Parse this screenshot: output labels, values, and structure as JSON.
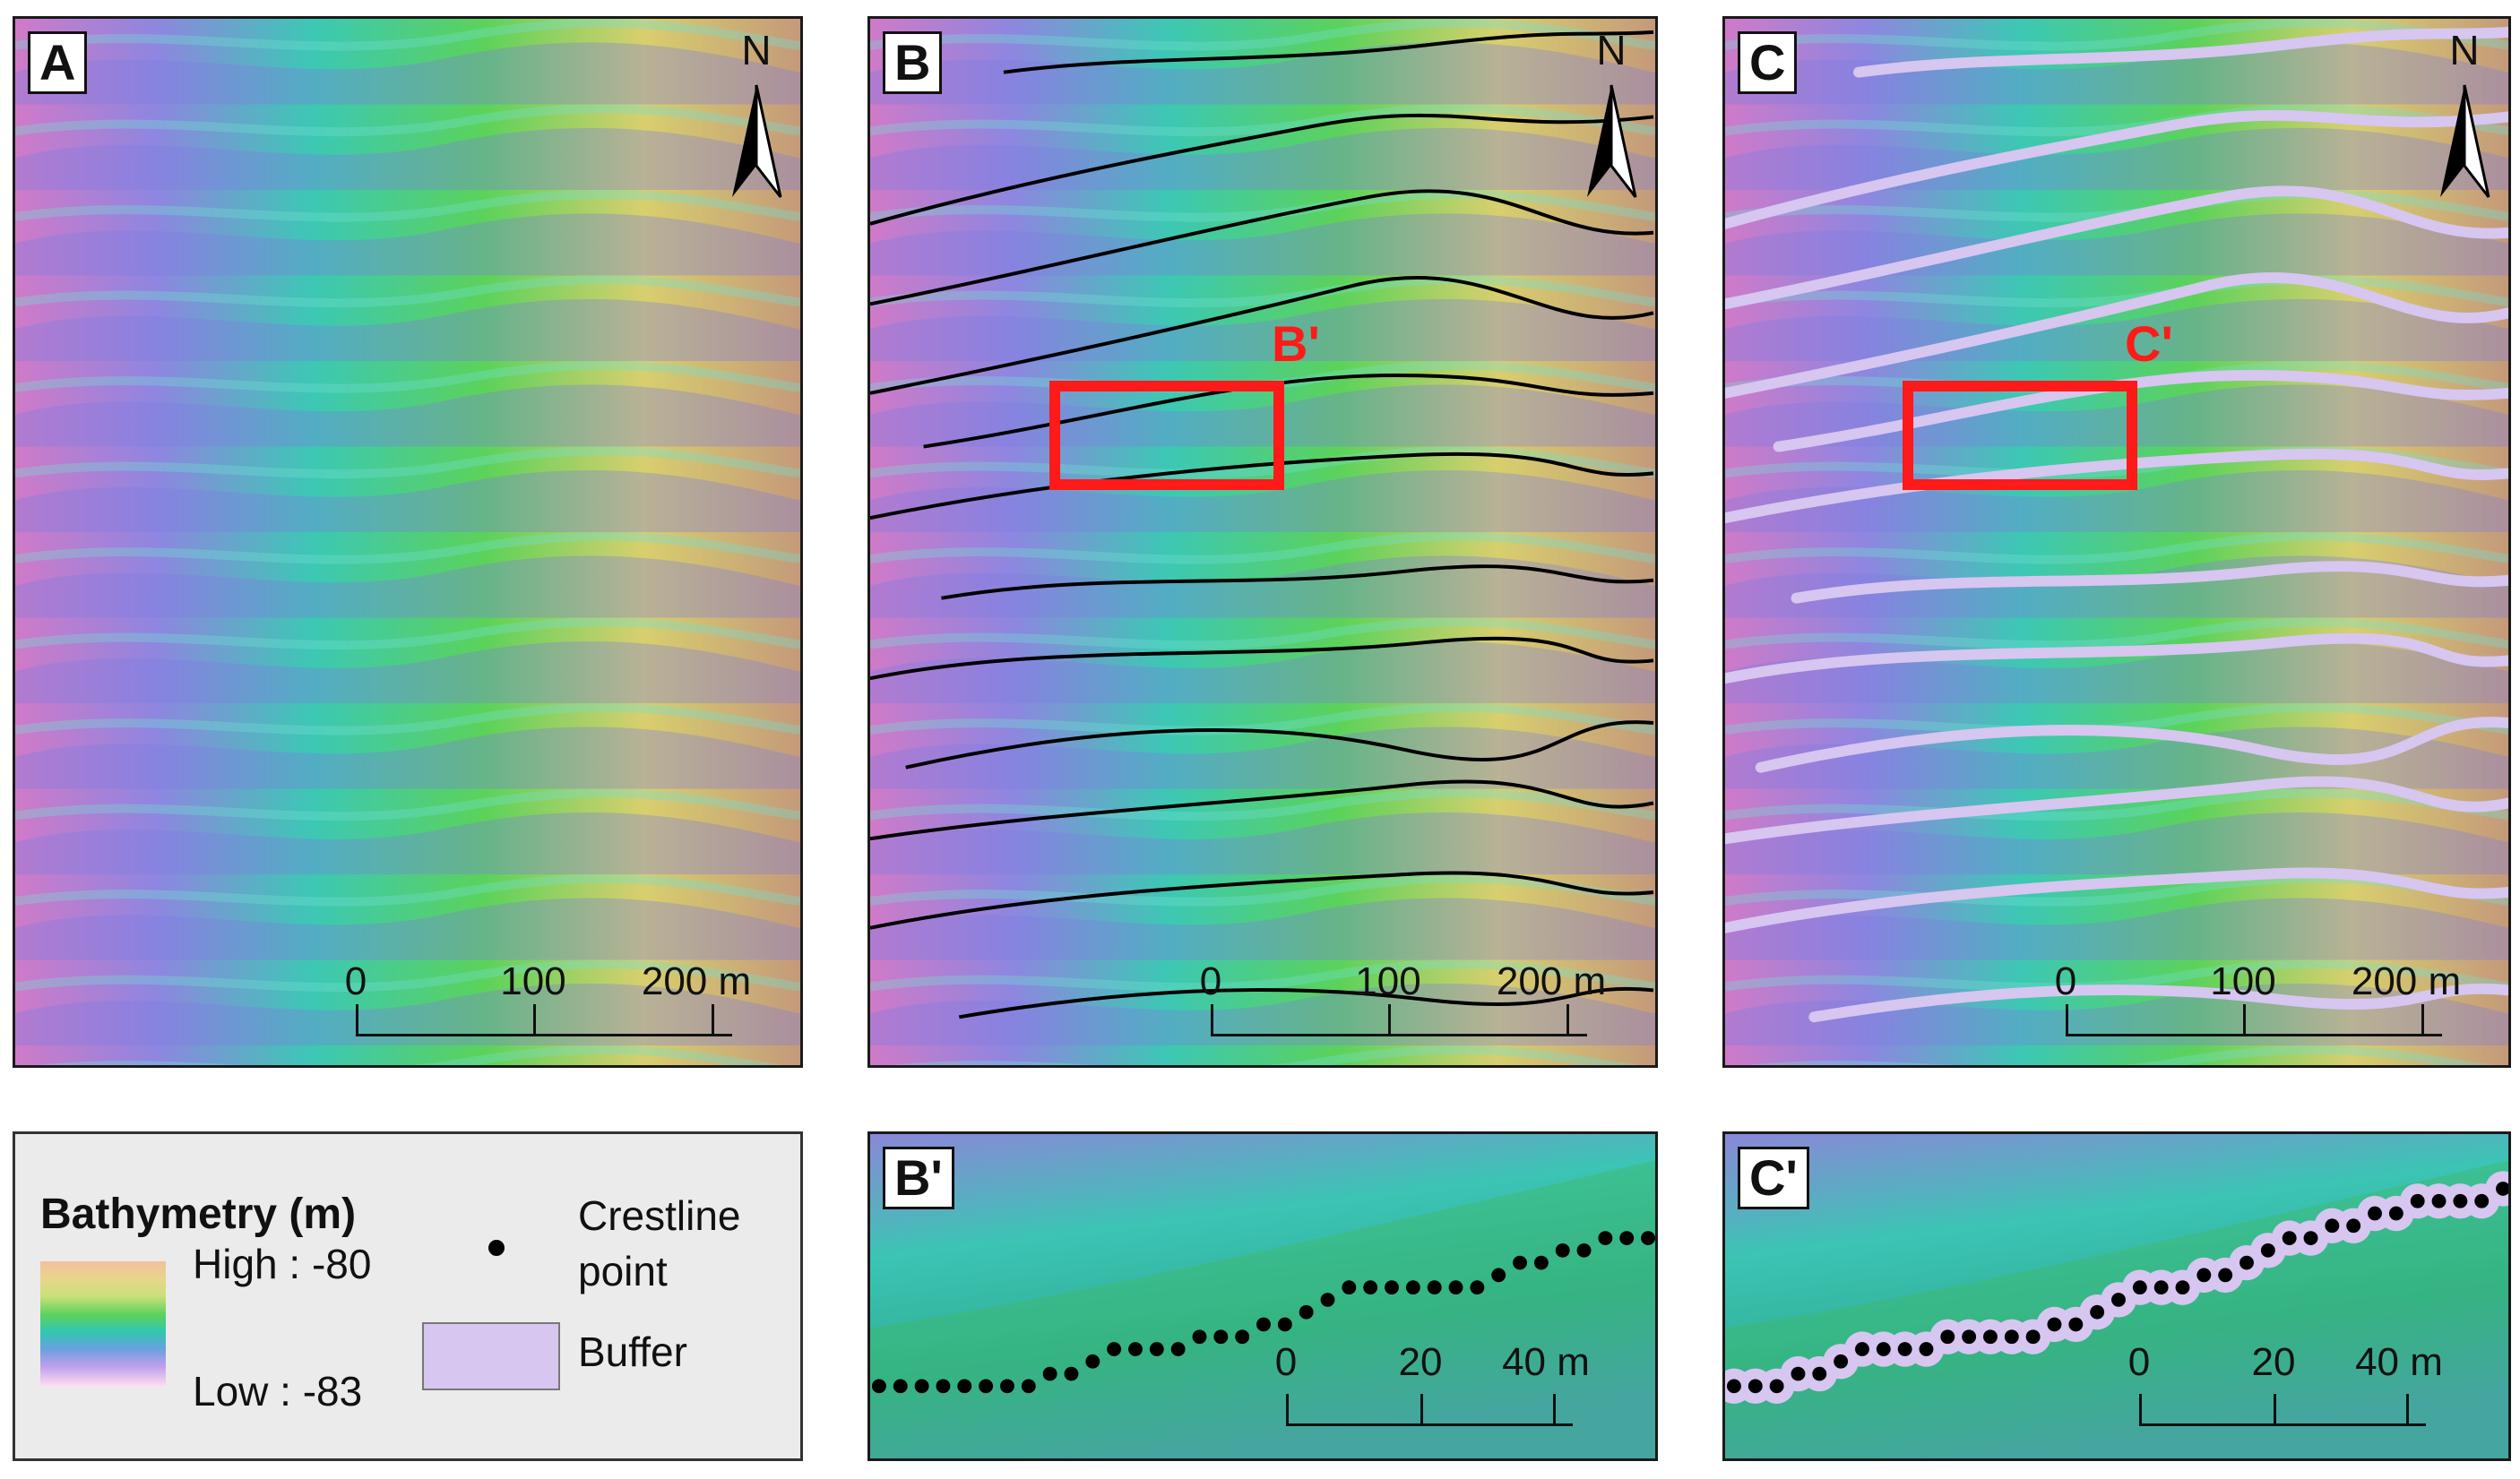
{
  "panels": {
    "a": {
      "label": "A",
      "north": "N"
    },
    "b": {
      "label": "B",
      "north": "N",
      "zoom_label": "B'"
    },
    "c": {
      "label": "C",
      "north": "N",
      "zoom_label": "C'"
    },
    "b_prime": {
      "label": "B'"
    },
    "c_prime": {
      "label": "C'"
    }
  },
  "scalebar_main": {
    "ticks": [
      "0",
      "100",
      "200 m"
    ]
  },
  "scalebar_zoom": {
    "ticks": [
      "0",
      "20",
      "40 m"
    ]
  },
  "legend": {
    "title": "Bathymetry (m)",
    "high": "High : -80",
    "low": "Low : -83",
    "crestline_line1": "Crestline",
    "crestline_line2": "point",
    "buffer": "Buffer"
  },
  "colors": {
    "crestline": "#000000",
    "buffer": "#d6c6f0",
    "zoom_box": "#ff1a1a",
    "ramp_high": "#e8b48a",
    "ramp_low": "#ffe0f0"
  },
  "icons": {
    "north_arrow": "north-arrow-icon"
  }
}
